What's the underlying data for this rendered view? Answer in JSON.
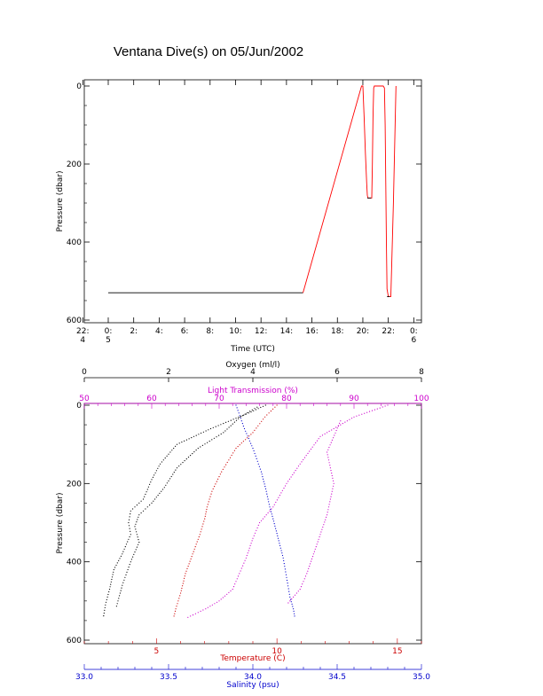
{
  "page_title": "Ventana Dive(s) on 05/Jun/2002",
  "chart_data": [
    {
      "type": "line",
      "ylabel": "Pressure (dbar)",
      "xlabel": "Time (UTC)",
      "y_ticks": [
        "0",
        "200",
        "400",
        "600"
      ],
      "ylim": [
        0,
        600
      ],
      "y_inverted": true,
      "x_ticks": [
        {
          "t": -2,
          "label": [
            "22:",
            "4"
          ]
        },
        {
          "t": 0,
          "label": [
            "0:",
            "5"
          ]
        },
        {
          "t": 2,
          "label": [
            "2:"
          ]
        },
        {
          "t": 4,
          "label": [
            "4:"
          ]
        },
        {
          "t": 6,
          "label": [
            "6:"
          ]
        },
        {
          "t": 8,
          "label": [
            "8:"
          ]
        },
        {
          "t": 10,
          "label": [
            "10:"
          ]
        },
        {
          "t": 12,
          "label": [
            "12:"
          ]
        },
        {
          "t": 14,
          "label": [
            "14:"
          ]
        },
        {
          "t": 16,
          "label": [
            "16:"
          ]
        },
        {
          "t": 18,
          "label": [
            "18:"
          ]
        },
        {
          "t": 20,
          "label": [
            "20:"
          ]
        },
        {
          "t": 22,
          "label": [
            "22:"
          ]
        },
        {
          "t": 24,
          "label": [
            "0:",
            "6"
          ]
        }
      ],
      "xlim": [
        -2.2,
        24.2
      ],
      "series": [
        {
          "color": "#000000",
          "x": [
            0,
            15.3
          ],
          "y": [
            530,
            530
          ]
        },
        {
          "color": "#ff0000",
          "x": [
            15.3,
            19.9,
            20.0,
            20.1,
            20.2,
            20.3,
            20.35,
            20.4,
            20.6,
            20.7,
            20.75,
            20.8,
            20.85,
            20.9,
            21.0,
            21.2,
            21.4,
            21.6,
            21.7,
            21.75,
            21.8,
            21.85,
            21.9,
            22.0,
            22.05,
            22.2,
            22.4,
            22.6
          ],
          "y": [
            530,
            0,
            0,
            80,
            170,
            250,
            280,
            287,
            287,
            287,
            200,
            80,
            5,
            0,
            0,
            0,
            0,
            0,
            5,
            100,
            250,
            400,
            520,
            540,
            540,
            540,
            300,
            0
          ]
        },
        {
          "color": "#000000",
          "x": [
            20.35,
            20.65
          ],
          "y": [
            287,
            287
          ]
        },
        {
          "color": "#000000",
          "x": [
            21.9,
            22.1
          ],
          "y": [
            540,
            540
          ]
        }
      ]
    },
    {
      "type": "scatter",
      "ylabel": "Pressure (dbar)",
      "y_ticks": [
        "0",
        "200",
        "400",
        "600"
      ],
      "ylim": [
        0,
        610
      ],
      "y_inverted": true,
      "axes": {
        "oxygen": {
          "label": "Oxygen (ml/l)",
          "range": [
            0,
            8
          ],
          "ticks": [
            "0",
            "2",
            "4",
            "6",
            "8"
          ],
          "color": "#000000"
        },
        "light": {
          "label": "Light Transmission (%)",
          "range": [
            50,
            100
          ],
          "ticks": [
            "50",
            "60",
            "70",
            "80",
            "90",
            "100"
          ],
          "color": "#cc00cc"
        },
        "temperature": {
          "label": "Temperature (C)",
          "range": [
            2,
            16
          ],
          "ticks": [
            "5",
            "10",
            "15"
          ],
          "color": "#cc0000"
        },
        "salinity": {
          "label": "Salinity (psu)",
          "range": [
            33.0,
            35.0
          ],
          "ticks": [
            "33.0",
            "33.5",
            "34.0",
            "34.5",
            "35.0"
          ],
          "color": "#0000cc"
        }
      },
      "series": [
        {
          "color": "#000000",
          "axis": "oxygen",
          "x": [
            4.3,
            3.9,
            3.0,
            2.2,
            1.8,
            1.6,
            1.4,
            1.1,
            1.05,
            1.1,
            0.9,
            0.7,
            0.6,
            0.5,
            0.45
          ],
          "y": [
            0,
            20,
            60,
            100,
            150,
            190,
            240,
            270,
            300,
            330,
            380,
            420,
            470,
            510,
            545
          ]
        },
        {
          "color": "#000000",
          "axis": "oxygen",
          "x": [
            4.1,
            3.7,
            3.3,
            2.7,
            2.2,
            1.9,
            1.6,
            1.3,
            1.2,
            1.3,
            1.1,
            0.9,
            0.75
          ],
          "y": [
            5,
            30,
            70,
            110,
            160,
            210,
            250,
            280,
            310,
            350,
            400,
            460,
            520
          ]
        },
        {
          "color": "#cc0000",
          "axis": "temperature",
          "x": [
            10.0,
            9.5,
            9.0,
            8.3,
            7.7,
            7.3,
            7.1,
            7.0,
            6.8,
            6.5,
            6.2,
            6.0,
            5.8,
            5.7
          ],
          "y": [
            0,
            30,
            70,
            110,
            170,
            220,
            260,
            290,
            330,
            380,
            430,
            480,
            520,
            545
          ]
        },
        {
          "color": "#0000cc",
          "axis": "salinity",
          "x": [
            33.9,
            33.95,
            34.0,
            34.05,
            34.08,
            34.1,
            34.12,
            34.15,
            34.18,
            34.2,
            34.22,
            34.24,
            34.25
          ],
          "y": [
            0,
            60,
            110,
            170,
            220,
            260,
            290,
            340,
            390,
            440,
            490,
            520,
            545
          ]
        },
        {
          "color": "#cc00cc",
          "axis": "light",
          "x": [
            95,
            90,
            85,
            82,
            80,
            78,
            76,
            75,
            74,
            73,
            72,
            70,
            68,
            65
          ],
          "y": [
            0,
            30,
            80,
            150,
            200,
            260,
            300,
            340,
            390,
            430,
            470,
            500,
            520,
            545
          ]
        },
        {
          "color": "#cc00cc",
          "axis": "light",
          "x": [
            88,
            86,
            87,
            86,
            85,
            84,
            83,
            82,
            80
          ],
          "y": [
            40,
            120,
            200,
            280,
            330,
            380,
            430,
            470,
            510
          ]
        }
      ]
    }
  ]
}
